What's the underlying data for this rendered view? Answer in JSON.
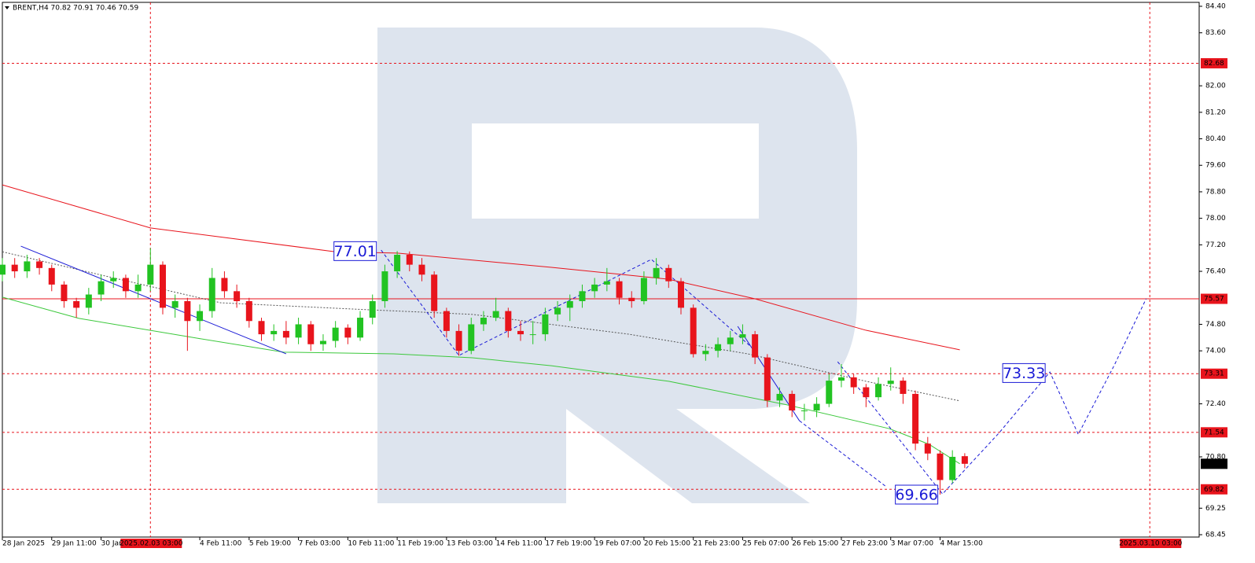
{
  "chart_data": {
    "type": "candlestick",
    "header": "BRENT,H4  70.82 70.91 70.46 70.59",
    "bull_color": "#22c322",
    "bear_color": "#e8141c",
    "xlim": [
      0,
      97
    ],
    "ylim": [
      68.45,
      84.4
    ],
    "xticks": [
      {
        "value": 0,
        "label": "28 Jan 2025"
      },
      {
        "value": 4,
        "label": "29 Jan 11:00"
      },
      {
        "value": 8,
        "label": "30 Jan"
      },
      {
        "value": 16,
        "label": "4 Feb 11:00"
      },
      {
        "value": 20,
        "label": "5 Feb 19:00"
      },
      {
        "value": 24,
        "label": "7 Feb 03:00"
      },
      {
        "value": 28,
        "label": "10 Feb 11:00"
      },
      {
        "value": 32,
        "label": "11 Feb 19:00"
      },
      {
        "value": 36,
        "label": "13 Feb 03:00"
      },
      {
        "value": 40,
        "label": "14 Feb 11:00"
      },
      {
        "value": 44,
        "label": "17 Feb 19:00"
      },
      {
        "value": 48,
        "label": "19 Feb 07:00"
      },
      {
        "value": 52,
        "label": "20 Feb 15:00"
      },
      {
        "value": 56,
        "label": "21 Feb 23:00"
      },
      {
        "value": 60,
        "label": "25 Feb 07:00"
      },
      {
        "value": 64,
        "label": "26 Feb 15:00"
      },
      {
        "value": 68,
        "label": "27 Feb 23:00"
      },
      {
        "value": 72,
        "label": "3 Mar 07:00"
      },
      {
        "value": 76,
        "label": "4 Mar 15:00"
      }
    ],
    "yticks": [
      {
        "value": 84.4,
        "label": "84.40"
      },
      {
        "value": 83.6,
        "label": "83.60"
      },
      {
        "value": 82,
        "label": "82.00"
      },
      {
        "value": 81.2,
        "label": "81.20"
      },
      {
        "value": 80.4,
        "label": "80.40"
      },
      {
        "value": 79.6,
        "label": "79.60"
      },
      {
        "value": 78.8,
        "label": "78.80"
      },
      {
        "value": 78,
        "label": "78.00"
      },
      {
        "value": 77.2,
        "label": "77.20"
      },
      {
        "value": 76.4,
        "label": "76.40"
      },
      {
        "value": 74.8,
        "label": "74.80"
      },
      {
        "value": 74,
        "label": "74.00"
      },
      {
        "value": 72.4,
        "label": "72.40"
      },
      {
        "value": 70.8,
        "label": "70.80"
      },
      69.25,
      68.45
    ],
    "candles": [
      [
        76.3,
        76.8,
        76.1,
        76.6
      ],
      [
        76.6,
        76.8,
        76.2,
        76.4
      ],
      [
        76.4,
        76.9,
        76.2,
        76.7
      ],
      [
        76.7,
        76.8,
        76.3,
        76.5
      ],
      [
        76.5,
        76.6,
        75.8,
        76.0
      ],
      [
        76.0,
        76.1,
        75.3,
        75.5
      ],
      [
        75.5,
        75.6,
        75.0,
        75.3
      ],
      [
        75.3,
        75.9,
        75.1,
        75.7
      ],
      [
        75.7,
        76.3,
        75.5,
        76.1
      ],
      [
        76.1,
        76.4,
        75.9,
        76.2
      ],
      [
        76.2,
        76.3,
        75.6,
        75.8
      ],
      [
        75.8,
        76.3,
        75.6,
        76.0
      ],
      [
        76.0,
        77.1,
        75.8,
        76.6
      ],
      [
        76.6,
        76.7,
        75.1,
        75.3
      ],
      [
        75.3,
        75.7,
        75.0,
        75.5
      ],
      [
        75.5,
        75.6,
        74.0,
        74.9
      ],
      [
        74.9,
        75.4,
        74.6,
        75.2
      ],
      [
        75.2,
        76.5,
        75.0,
        76.2
      ],
      [
        76.2,
        76.4,
        75.6,
        75.8
      ],
      [
        75.8,
        76.0,
        75.3,
        75.5
      ],
      [
        75.5,
        75.6,
        74.7,
        74.9
      ],
      [
        74.9,
        75.0,
        74.3,
        74.5
      ],
      [
        74.5,
        74.8,
        74.3,
        74.6
      ],
      [
        74.6,
        74.9,
        74.2,
        74.4
      ],
      [
        74.4,
        75.0,
        74.2,
        74.8
      ],
      [
        74.8,
        74.9,
        74.0,
        74.2
      ],
      [
        74.2,
        74.5,
        74.0,
        74.3
      ],
      [
        74.3,
        74.9,
        74.1,
        74.7
      ],
      [
        74.7,
        74.8,
        74.2,
        74.4
      ],
      [
        74.4,
        75.2,
        74.3,
        75.0
      ],
      [
        75.0,
        75.7,
        74.8,
        75.5
      ],
      [
        75.5,
        76.6,
        75.3,
        76.4
      ],
      [
        76.4,
        77.01,
        76.2,
        76.9
      ],
      [
        76.9,
        77.0,
        76.4,
        76.6
      ],
      [
        76.6,
        76.8,
        76.1,
        76.3
      ],
      [
        76.3,
        76.4,
        75.0,
        75.2
      ],
      [
        75.2,
        75.3,
        74.4,
        74.6
      ],
      [
        74.6,
        74.8,
        73.85,
        74.0
      ],
      [
        74.0,
        75.0,
        73.9,
        74.8
      ],
      [
        74.8,
        75.2,
        74.6,
        75.0
      ],
      [
        75.0,
        75.6,
        74.9,
        75.2
      ],
      [
        75.2,
        75.3,
        74.4,
        74.6
      ],
      [
        74.6,
        74.9,
        74.3,
        74.5
      ],
      [
        74.5,
        74.9,
        74.2,
        74.5
      ],
      [
        74.5,
        75.3,
        74.3,
        75.1
      ],
      [
        75.1,
        75.5,
        74.9,
        75.3
      ],
      [
        75.3,
        75.7,
        74.9,
        75.5
      ],
      [
        75.5,
        76.0,
        75.3,
        75.8
      ],
      [
        75.8,
        76.2,
        75.6,
        76.0
      ],
      [
        76.0,
        76.5,
        75.8,
        76.1
      ],
      [
        76.1,
        76.2,
        75.4,
        75.6
      ],
      [
        75.6,
        75.8,
        75.3,
        75.5
      ],
      [
        75.5,
        76.4,
        75.4,
        76.2
      ],
      [
        76.2,
        76.8,
        76.0,
        76.5
      ],
      [
        76.5,
        76.6,
        75.9,
        76.1
      ],
      [
        76.1,
        76.2,
        75.1,
        75.3
      ],
      [
        75.3,
        75.4,
        73.8,
        73.9
      ],
      [
        73.9,
        74.2,
        73.7,
        74.0
      ],
      [
        74.0,
        74.4,
        73.8,
        74.2
      ],
      [
        74.2,
        74.6,
        74.0,
        74.4
      ],
      [
        74.4,
        74.8,
        74.2,
        74.5
      ],
      [
        74.5,
        74.6,
        73.6,
        73.8
      ],
      [
        73.8,
        73.9,
        72.3,
        72.5
      ],
      [
        72.5,
        72.9,
        72.3,
        72.7
      ],
      [
        72.7,
        72.8,
        72.0,
        72.2
      ],
      [
        72.2,
        72.4,
        71.9,
        72.2
      ],
      [
        72.2,
        72.6,
        72.0,
        72.4
      ],
      [
        72.4,
        73.3,
        72.3,
        73.1
      ],
      [
        73.1,
        73.6,
        72.9,
        73.2
      ],
      [
        73.2,
        73.3,
        72.7,
        72.9
      ],
      [
        72.9,
        73.0,
        72.3,
        72.6
      ],
      [
        72.6,
        73.2,
        72.5,
        73.0
      ],
      [
        73.0,
        73.5,
        72.8,
        73.1
      ],
      [
        73.1,
        73.2,
        72.4,
        72.7
      ],
      [
        72.7,
        72.8,
        71.0,
        71.2
      ],
      [
        71.2,
        71.4,
        70.7,
        70.9
      ],
      [
        70.9,
        71.0,
        69.66,
        70.1
      ],
      [
        70.1,
        71.0,
        70.0,
        70.8
      ],
      [
        70.82,
        70.91,
        70.46,
        70.59
      ]
    ],
    "overlays": [
      {
        "color": "#e8141c",
        "style": "solid",
        "x": [
          0,
          12,
          27,
          32,
          44.5,
          54,
          61,
          70,
          77.6
        ],
        "values": [
          79.01,
          77.71,
          76.99,
          76.95,
          76.52,
          76.16,
          75.57,
          74.62,
          74.03
        ]
      },
      {
        "color": "#3cc83c",
        "style": "solid",
        "x": [
          0,
          6.2,
          15.8,
          22.8,
          31.7,
          38.1,
          44.5,
          54,
          63.6,
          71.9,
          75.1,
          77.6
        ],
        "values": [
          75.62,
          74.98,
          74.38,
          73.96,
          73.91,
          73.79,
          73.55,
          73.08,
          72.37,
          71.65,
          71.18,
          70.59
        ]
      },
      {
        "color": "#555555",
        "style": "dotted",
        "x": [
          0,
          8.1,
          17.7,
          28.5,
          38.1,
          50.8,
          60.4,
          70,
          77.6
        ],
        "values": [
          76.99,
          76.28,
          75.45,
          75.26,
          75.1,
          74.5,
          73.91,
          73.08,
          72.49
        ]
      },
      {
        "color": "#1a1ad6",
        "style": "solid",
        "x": [
          1.5,
          23
        ],
        "values": [
          77.16,
          73.91
        ]
      },
      {
        "color": "#1a1ad6",
        "style": "solid",
        "x": [
          59.6,
          64.6
        ],
        "values": [
          74.74,
          71.89
        ]
      },
      {
        "color": "#1a1ad6",
        "style": "dashed",
        "x": [
          30.7,
          37,
          52.6,
          60.6
        ],
        "values": [
          77.04,
          73.86,
          76.76,
          74.15
        ]
      },
      {
        "color": "#1a1ad6",
        "style": "dashed",
        "x": [
          64.6,
          71.7
        ],
        "values": [
          71.89,
          69.88
        ]
      },
      {
        "color": "#1a1ad6",
        "style": "dashed",
        "x": [
          67.7,
          76.2,
          80.8,
          84.9,
          87.2,
          90.1,
          92.7
        ],
        "values": [
          73.67,
          69.68,
          71.53,
          73.36,
          71.48,
          73.55,
          75.57
        ]
      }
    ],
    "levels": [
      82.68,
      73.31,
      71.54,
      69.82
    ],
    "support_line": 75.57,
    "current_price": 70.59,
    "annotations": [
      {
        "value": 77.01,
        "x": 30.7
      },
      {
        "value": 73.33,
        "x": 84.9
      },
      {
        "value": 69.66,
        "x": 76.2
      }
    ],
    "time_markers": [
      {
        "value": 12,
        "label": "2025.02.03 03:00"
      },
      {
        "value": 93,
        "label": "2025.03.10 03:00"
      }
    ]
  }
}
